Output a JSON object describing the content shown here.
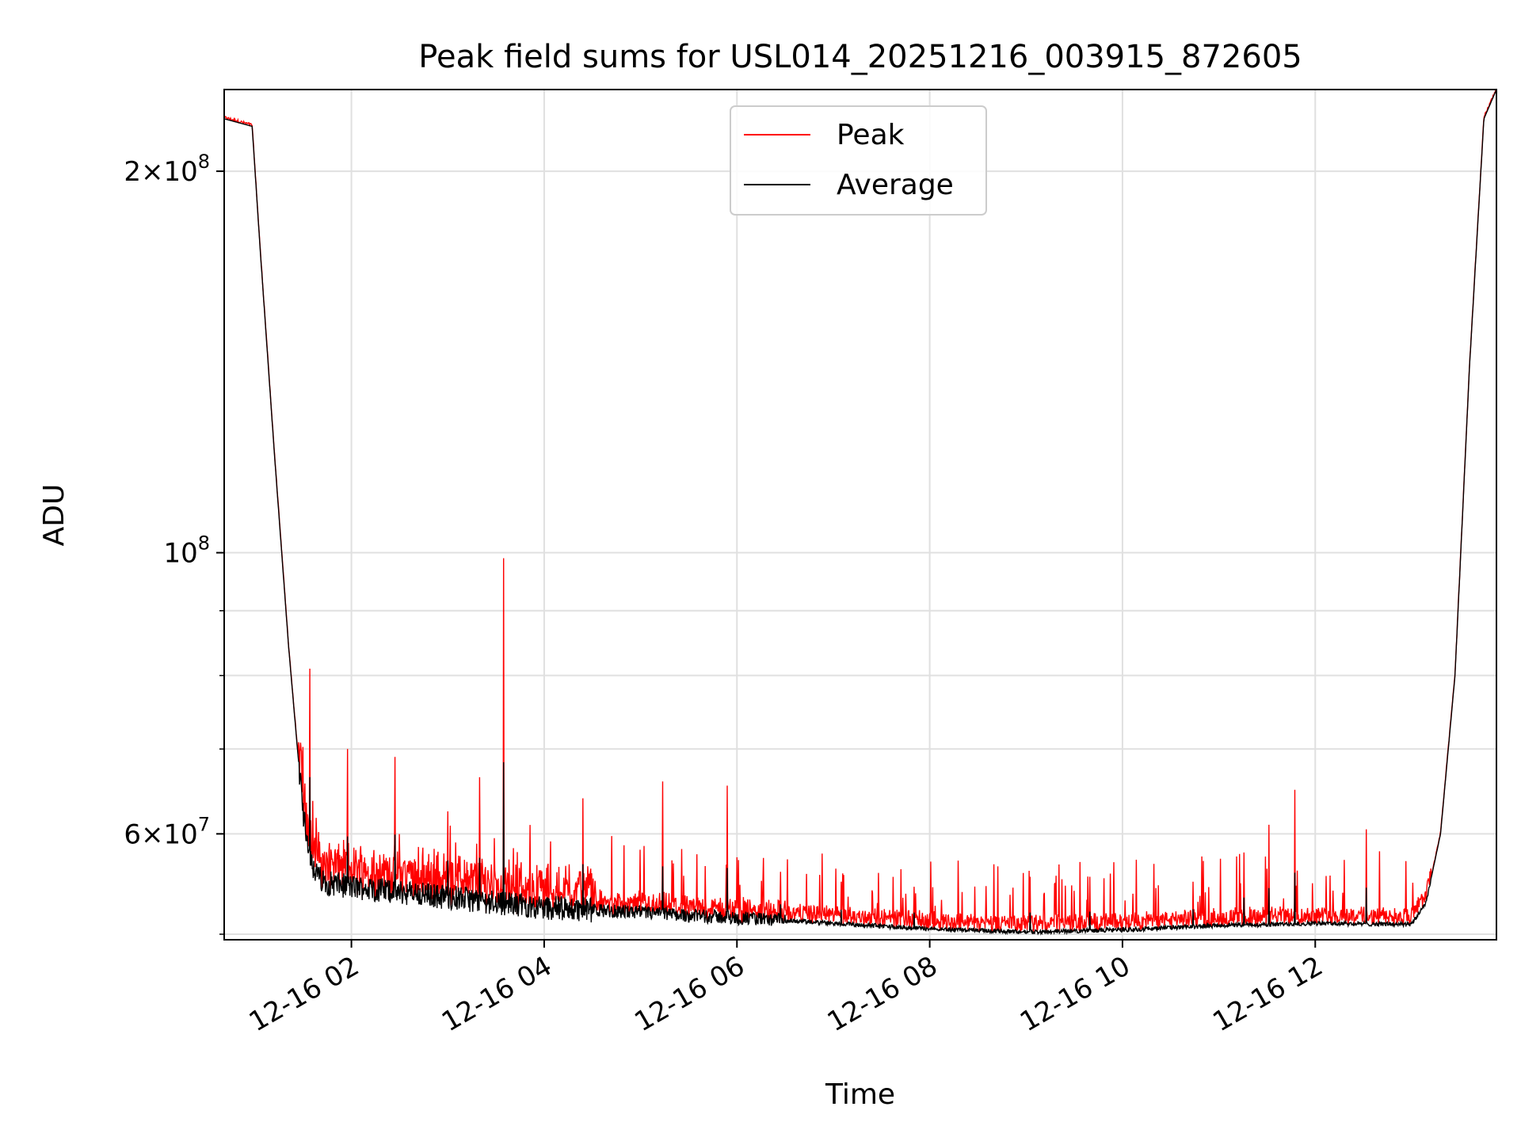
{
  "chart_data": {
    "type": "line",
    "title": "Peak field sums for USL014_20251216_003915_872605",
    "xlabel": "Time",
    "ylabel": "ADU",
    "y_scale": "log",
    "ylim": [
      49500000,
      232000000
    ],
    "xlim_hours": [
      0.68,
      13.88
    ],
    "x_ticks": [
      {
        "hour": 2,
        "label": "12-16 02"
      },
      {
        "hour": 4,
        "label": "12-16 04"
      },
      {
        "hour": 6,
        "label": "12-16 06"
      },
      {
        "hour": 8,
        "label": "12-16 08"
      },
      {
        "hour": 10,
        "label": "12-16 10"
      },
      {
        "hour": 12,
        "label": "12-16 12"
      }
    ],
    "y_major_ticks": [
      {
        "value": 60000000,
        "mantissa": "6",
        "base": "10",
        "exp": "7"
      },
      {
        "value": 100000000,
        "mantissa": "",
        "base": "10",
        "exp": "8"
      },
      {
        "value": 200000000,
        "mantissa": "2",
        "base": "10",
        "exp": "8"
      }
    ],
    "y_minor_ticks": [
      50000000,
      70000000,
      80000000,
      90000000
    ],
    "grid": true,
    "legend_position": "upper-center",
    "series": [
      {
        "name": "Peak",
        "color": "#ff0000"
      },
      {
        "name": "Average",
        "color": "#000000"
      }
    ],
    "baseline_profile": {
      "hours": [
        0.68,
        0.97,
        1.05,
        1.2,
        1.35,
        1.5,
        1.6,
        1.7,
        2.0,
        3.0,
        4.0,
        5.0,
        6.0,
        7.0,
        8.0,
        9.0,
        10.0,
        11.0,
        12.0,
        13.0,
        13.15,
        13.3,
        13.45,
        13.6,
        13.75,
        13.88
      ],
      "values": [
        220000000,
        217000000,
        175000000,
        120000000,
        84000000,
        62000000,
        56500000,
        55000000,
        54500000,
        53500000,
        52500000,
        52000000,
        51500000,
        51000000,
        50500000,
        50200000,
        50400000,
        50800000,
        51000000,
        50900000,
        53000000,
        60000000,
        80000000,
        140000000,
        220000000,
        232000000
      ]
    },
    "peak_spikes": [
      {
        "hour": 1.57,
        "value": 81000000
      },
      {
        "hour": 1.96,
        "value": 70000000
      },
      {
        "hour": 2.45,
        "value": 69000000
      },
      {
        "hour": 3.0,
        "value": 62500000
      },
      {
        "hour": 3.33,
        "value": 66500000
      },
      {
        "hour": 3.58,
        "value": 99000000
      },
      {
        "hour": 4.4,
        "value": 64000000
      },
      {
        "hour": 5.23,
        "value": 66000000
      },
      {
        "hour": 5.9,
        "value": 65500000
      },
      {
        "hour": 6.45,
        "value": 56000000
      },
      {
        "hour": 7.08,
        "value": 55000000
      },
      {
        "hour": 7.84,
        "value": 54500000
      },
      {
        "hour": 9.04,
        "value": 55500000
      },
      {
        "hour": 9.66,
        "value": 55500000
      },
      {
        "hour": 10.73,
        "value": 55000000
      },
      {
        "hour": 11.26,
        "value": 58000000
      },
      {
        "hour": 11.52,
        "value": 61000000
      },
      {
        "hour": 11.79,
        "value": 65000000
      },
      {
        "hour": 12.53,
        "value": 60500000
      }
    ]
  }
}
